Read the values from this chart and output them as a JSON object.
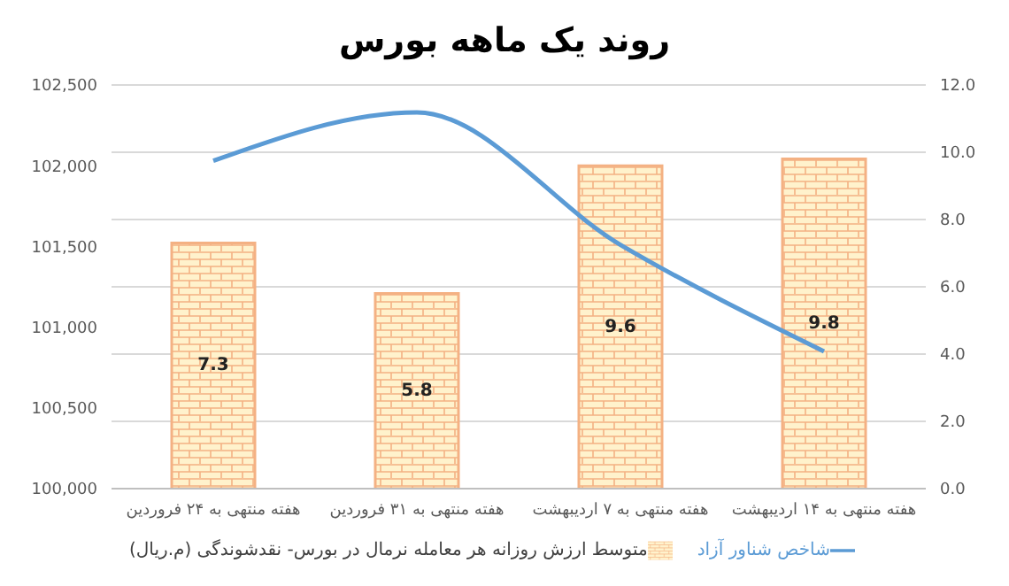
{
  "chart_data": {
    "type": "bar",
    "title": "روند یک ماهه بورس",
    "categories": [
      "هفته منتهی به ۲۴ فروردین",
      "هفته منتهی به ۳۱ فروردین",
      "هفته منتهی به ۷ اردیبهشت",
      "هفته منتهی به ۱۴ اردیبهشت"
    ],
    "series": [
      {
        "name": "متوسط ارزش روزانه هر معامله نرمال در بورس- نقدشوندگی (م.ریال)",
        "axis": "y2",
        "color": "#f4b183",
        "values": [
          7.3,
          5.8,
          9.6,
          9.8
        ],
        "value_labels": [
          "7.3",
          "5.8",
          "9.6",
          "9.8"
        ]
      },
      {
        "name": "شاخص شناور آزاد",
        "type": "line",
        "color": "#5b9bd5",
        "values": [
          102030,
          102330,
          101510,
          100850
        ]
      }
    ],
    "ylim": [
      100000,
      102500
    ],
    "yticks": [
      {
        "value": 100000,
        "label": "100,000"
      },
      {
        "value": 100500,
        "label": "100,500"
      },
      {
        "value": 101000,
        "label": "101,000"
      },
      {
        "value": 101500,
        "label": "101,500"
      },
      {
        "value": 102000,
        "label": "102,000"
      },
      {
        "value": 102500,
        "label": "102,500"
      }
    ],
    "y2lim": [
      0,
      12
    ],
    "y2ticks": [
      {
        "value": 0,
        "label": "0.0"
      },
      {
        "value": 2,
        "label": "2.0"
      },
      {
        "value": 4,
        "label": "4.0"
      },
      {
        "value": 6,
        "label": "6.0"
      },
      {
        "value": 8,
        "label": "8.0"
      },
      {
        "value": 10,
        "label": "10.0"
      },
      {
        "value": 12,
        "label": "12.0"
      }
    ],
    "grid": "y",
    "legend": "bottom",
    "marker": "none"
  }
}
